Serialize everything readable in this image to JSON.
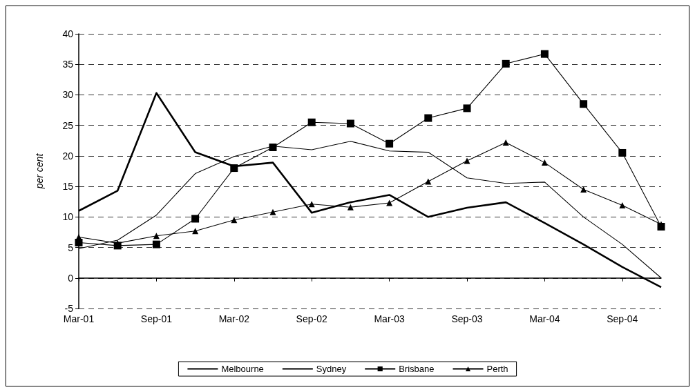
{
  "chart_data": {
    "type": "line",
    "ylabel": "per cent",
    "categories": [
      "Mar-01",
      null,
      "Sep-01",
      null,
      "Mar-02",
      null,
      "Sep-02",
      null,
      "Mar-03",
      null,
      "Sep-03",
      null,
      "Mar-04",
      null,
      "Sep-04",
      null
    ],
    "series": [
      {
        "name": "Melbourne",
        "color": "#000000",
        "marker": "none",
        "values": [
          11,
          14.3,
          30.3,
          20.6,
          18.3,
          18.9,
          10.7,
          12.4,
          13.6,
          10,
          11.5,
          12.4,
          9,
          5.5,
          1.8,
          -1.5
        ]
      },
      {
        "name": "Sydney",
        "color": "#000000",
        "marker": "none",
        "values": [
          4.8,
          6.2,
          10.3,
          17.1,
          19.9,
          21.6,
          21,
          22.4,
          20.8,
          20.6,
          16.4,
          15.5,
          15.7,
          10,
          5.5,
          0
        ]
      },
      {
        "name": "Brisbane",
        "color": "#000000",
        "marker": "square",
        "values": [
          5.8,
          5.3,
          5.5,
          9.7,
          18,
          21.4,
          25.5,
          25.3,
          22,
          26.2,
          27.8,
          35.1,
          36.7,
          28.5,
          20.5,
          8.4
        ]
      },
      {
        "name": "Perth",
        "color": "#000000",
        "marker": "triangle",
        "values": [
          6.7,
          5.7,
          6.9,
          7.7,
          9.5,
          10.8,
          12.1,
          11.6,
          12.3,
          15.8,
          19.2,
          22.2,
          18.9,
          14.5,
          11.9,
          8.8
        ]
      }
    ],
    "ylim": [
      -5,
      40
    ],
    "yticks": [
      -5,
      0,
      5,
      10,
      15,
      20,
      25,
      30,
      35,
      40
    ],
    "grid": "y",
    "legend": "bottom",
    "line_style": "solid"
  }
}
